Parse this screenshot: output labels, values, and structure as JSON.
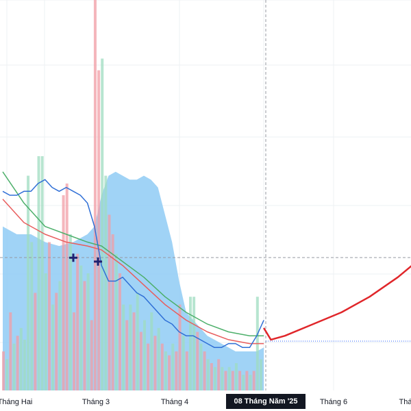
{
  "chart_data": {
    "type": "line",
    "title": "",
    "xlabel": "",
    "ylabel": "",
    "grid": true,
    "x_axis_labels": [
      "Tháng Hai",
      "Tháng 3",
      "Tháng 4",
      "Tháng 6",
      "Thá"
    ],
    "cursor_label": "08 Tháng Năm '25",
    "ylim": [
      0,
      100
    ],
    "volume_bars": [
      {
        "x": 0.1,
        "v": 10,
        "c": "r"
      },
      {
        "x": 0.6,
        "v": 8,
        "c": "g"
      },
      {
        "x": 1.1,
        "v": 20,
        "c": "r"
      },
      {
        "x": 1.6,
        "v": 12,
        "c": "g"
      },
      {
        "x": 2.1,
        "v": 14,
        "c": "r"
      },
      {
        "x": 2.6,
        "v": 16,
        "c": "g"
      },
      {
        "x": 3.1,
        "v": 13,
        "c": "g"
      },
      {
        "x": 3.6,
        "v": 55,
        "c": "g"
      },
      {
        "x": 4.1,
        "v": 38,
        "c": "g"
      },
      {
        "x": 4.6,
        "v": 25,
        "c": "r"
      },
      {
        "x": 5.1,
        "v": 60,
        "c": "g"
      },
      {
        "x": 5.6,
        "v": 60,
        "c": "g"
      },
      {
        "x": 6.1,
        "v": 30,
        "c": "g"
      },
      {
        "x": 6.6,
        "v": 38,
        "c": "r"
      },
      {
        "x": 7.1,
        "v": 22,
        "c": "g"
      },
      {
        "x": 7.6,
        "v": 25,
        "c": "r"
      },
      {
        "x": 8.1,
        "v": 28,
        "c": "g"
      },
      {
        "x": 8.6,
        "v": 50,
        "c": "r"
      },
      {
        "x": 9.1,
        "v": 53,
        "c": "r"
      },
      {
        "x": 9.6,
        "v": 40,
        "c": "g"
      },
      {
        "x": 10.1,
        "v": 20,
        "c": "r"
      },
      {
        "x": 10.6,
        "v": 35,
        "c": "r"
      },
      {
        "x": 11.1,
        "v": 32,
        "c": "g"
      },
      {
        "x": 11.6,
        "v": 28,
        "c": "r"
      },
      {
        "x": 12.1,
        "v": 30,
        "c": "g"
      },
      {
        "x": 12.6,
        "v": 18,
        "c": "r"
      },
      {
        "x": 13.1,
        "v": 100,
        "c": "r"
      },
      {
        "x": 13.6,
        "v": 82,
        "c": "r"
      },
      {
        "x": 14.1,
        "v": 85,
        "c": "g"
      },
      {
        "x": 14.6,
        "v": 55,
        "c": "g"
      },
      {
        "x": 15.1,
        "v": 45,
        "c": "r"
      },
      {
        "x": 15.6,
        "v": 40,
        "c": "r"
      },
      {
        "x": 16.1,
        "v": 35,
        "c": "g"
      },
      {
        "x": 16.6,
        "v": 30,
        "c": "r"
      },
      {
        "x": 17.1,
        "v": 22,
        "c": "g"
      },
      {
        "x": 17.6,
        "v": 18,
        "c": "r"
      },
      {
        "x": 18.1,
        "v": 22,
        "c": "g"
      },
      {
        "x": 18.6,
        "v": 20,
        "c": "r"
      },
      {
        "x": 19.1,
        "v": 25,
        "c": "g"
      },
      {
        "x": 19.6,
        "v": 15,
        "c": "r"
      },
      {
        "x": 20.1,
        "v": 18,
        "c": "g"
      },
      {
        "x": 20.6,
        "v": 12,
        "c": "r"
      },
      {
        "x": 21.1,
        "v": 20,
        "c": "g"
      },
      {
        "x": 21.6,
        "v": 14,
        "c": "r"
      },
      {
        "x": 22.1,
        "v": 16,
        "c": "g"
      },
      {
        "x": 22.6,
        "v": 12,
        "c": "r"
      },
      {
        "x": 23.1,
        "v": 10,
        "c": "g"
      },
      {
        "x": 23.6,
        "v": 9,
        "c": "r"
      },
      {
        "x": 24.1,
        "v": 12,
        "c": "g"
      },
      {
        "x": 24.6,
        "v": 10,
        "c": "r"
      },
      {
        "x": 25.1,
        "v": 22,
        "c": "r"
      },
      {
        "x": 25.6,
        "v": 14,
        "c": "g"
      },
      {
        "x": 26.1,
        "v": 10,
        "c": "r"
      },
      {
        "x": 26.6,
        "v": 24,
        "c": "g"
      },
      {
        "x": 27.1,
        "v": 24,
        "c": "g"
      },
      {
        "x": 27.6,
        "v": 15,
        "c": "r"
      },
      {
        "x": 28.1,
        "v": 12,
        "c": "g"
      },
      {
        "x": 28.6,
        "v": 10,
        "c": "r"
      },
      {
        "x": 29.1,
        "v": 8,
        "c": "g"
      },
      {
        "x": 29.6,
        "v": 7,
        "c": "r"
      },
      {
        "x": 30.1,
        "v": 6,
        "c": "g"
      },
      {
        "x": 30.6,
        "v": 8,
        "c": "r"
      },
      {
        "x": 31.1,
        "v": 6,
        "c": "g"
      },
      {
        "x": 31.6,
        "v": 5,
        "c": "r"
      },
      {
        "x": 32.1,
        "v": 6,
        "c": "g"
      },
      {
        "x": 32.6,
        "v": 5,
        "c": "r"
      },
      {
        "x": 33.1,
        "v": 7,
        "c": "g"
      },
      {
        "x": 33.6,
        "v": 5,
        "c": "r"
      },
      {
        "x": 34.1,
        "v": 4,
        "c": "g"
      },
      {
        "x": 34.6,
        "v": 5,
        "c": "r"
      },
      {
        "x": 35.1,
        "v": 4,
        "c": "g"
      },
      {
        "x": 35.6,
        "v": 5,
        "c": "r"
      },
      {
        "x": 36.1,
        "v": 24,
        "c": "g"
      },
      {
        "x": 36.6,
        "v": 8,
        "c": "g"
      }
    ],
    "area": [
      [
        0,
        58
      ],
      [
        2,
        60
      ],
      [
        4,
        60
      ],
      [
        6,
        62
      ],
      [
        8,
        63
      ],
      [
        10,
        62
      ],
      [
        12,
        60
      ],
      [
        13,
        58
      ],
      [
        14,
        50
      ],
      [
        15,
        45
      ],
      [
        16,
        44
      ],
      [
        17,
        45
      ],
      [
        18,
        46
      ],
      [
        19,
        46
      ],
      [
        20,
        45
      ],
      [
        21,
        46
      ],
      [
        22,
        48
      ],
      [
        23,
        55
      ],
      [
        24,
        62
      ],
      [
        25,
        72
      ],
      [
        26,
        80
      ],
      [
        27,
        82
      ],
      [
        28,
        84
      ],
      [
        29,
        86
      ],
      [
        30,
        87
      ],
      [
        31,
        88
      ],
      [
        32,
        89
      ],
      [
        33,
        90
      ],
      [
        34,
        90
      ],
      [
        35,
        90
      ],
      [
        36,
        90
      ],
      [
        37,
        89
      ]
    ],
    "blue_line": [
      [
        0,
        49
      ],
      [
        1,
        50
      ],
      [
        2,
        50
      ],
      [
        3,
        49
      ],
      [
        4,
        49
      ],
      [
        5,
        47
      ],
      [
        6,
        46
      ],
      [
        7,
        48
      ],
      [
        8,
        49
      ],
      [
        9,
        48
      ],
      [
        10,
        49
      ],
      [
        11,
        50
      ],
      [
        12,
        52
      ],
      [
        13,
        58
      ],
      [
        14,
        68
      ],
      [
        15,
        72
      ],
      [
        16,
        72
      ],
      [
        17,
        71
      ],
      [
        18,
        73
      ],
      [
        19,
        75
      ],
      [
        20,
        76
      ],
      [
        21,
        78
      ],
      [
        22,
        80
      ],
      [
        23,
        82
      ],
      [
        24,
        83
      ],
      [
        25,
        85
      ],
      [
        26,
        86
      ],
      [
        27,
        86
      ],
      [
        28,
        87
      ],
      [
        29,
        88
      ],
      [
        30,
        89
      ],
      [
        31,
        89
      ],
      [
        32,
        88
      ],
      [
        33,
        88
      ],
      [
        34,
        89
      ],
      [
        35,
        89
      ],
      [
        36,
        86
      ],
      [
        37,
        82
      ]
    ],
    "green_line": [
      [
        0,
        44
      ],
      [
        3,
        52
      ],
      [
        6,
        58
      ],
      [
        9,
        60
      ],
      [
        12,
        62
      ],
      [
        14,
        63
      ],
      [
        17,
        67
      ],
      [
        20,
        71
      ],
      [
        23,
        76
      ],
      [
        26,
        80
      ],
      [
        29,
        83
      ],
      [
        32,
        85
      ],
      [
        35,
        86
      ],
      [
        37,
        86
      ]
    ],
    "salmon_line": [
      [
        0,
        51
      ],
      [
        3,
        57
      ],
      [
        6,
        60
      ],
      [
        9,
        62
      ],
      [
        12,
        63
      ],
      [
        14,
        64
      ],
      [
        17,
        68
      ],
      [
        20,
        73
      ],
      [
        23,
        78
      ],
      [
        26,
        82
      ],
      [
        29,
        85
      ],
      [
        32,
        87
      ],
      [
        35,
        88
      ],
      [
        37,
        88
      ]
    ],
    "red_projection": [
      [
        37,
        84
      ],
      [
        38,
        87
      ],
      [
        40,
        86
      ],
      [
        44,
        83
      ],
      [
        48,
        80
      ],
      [
        52,
        76
      ],
      [
        56,
        71
      ],
      [
        60,
        65
      ],
      [
        62,
        62
      ]
    ],
    "markers": [
      [
        10,
        66
      ],
      [
        13.5,
        67
      ]
    ]
  }
}
